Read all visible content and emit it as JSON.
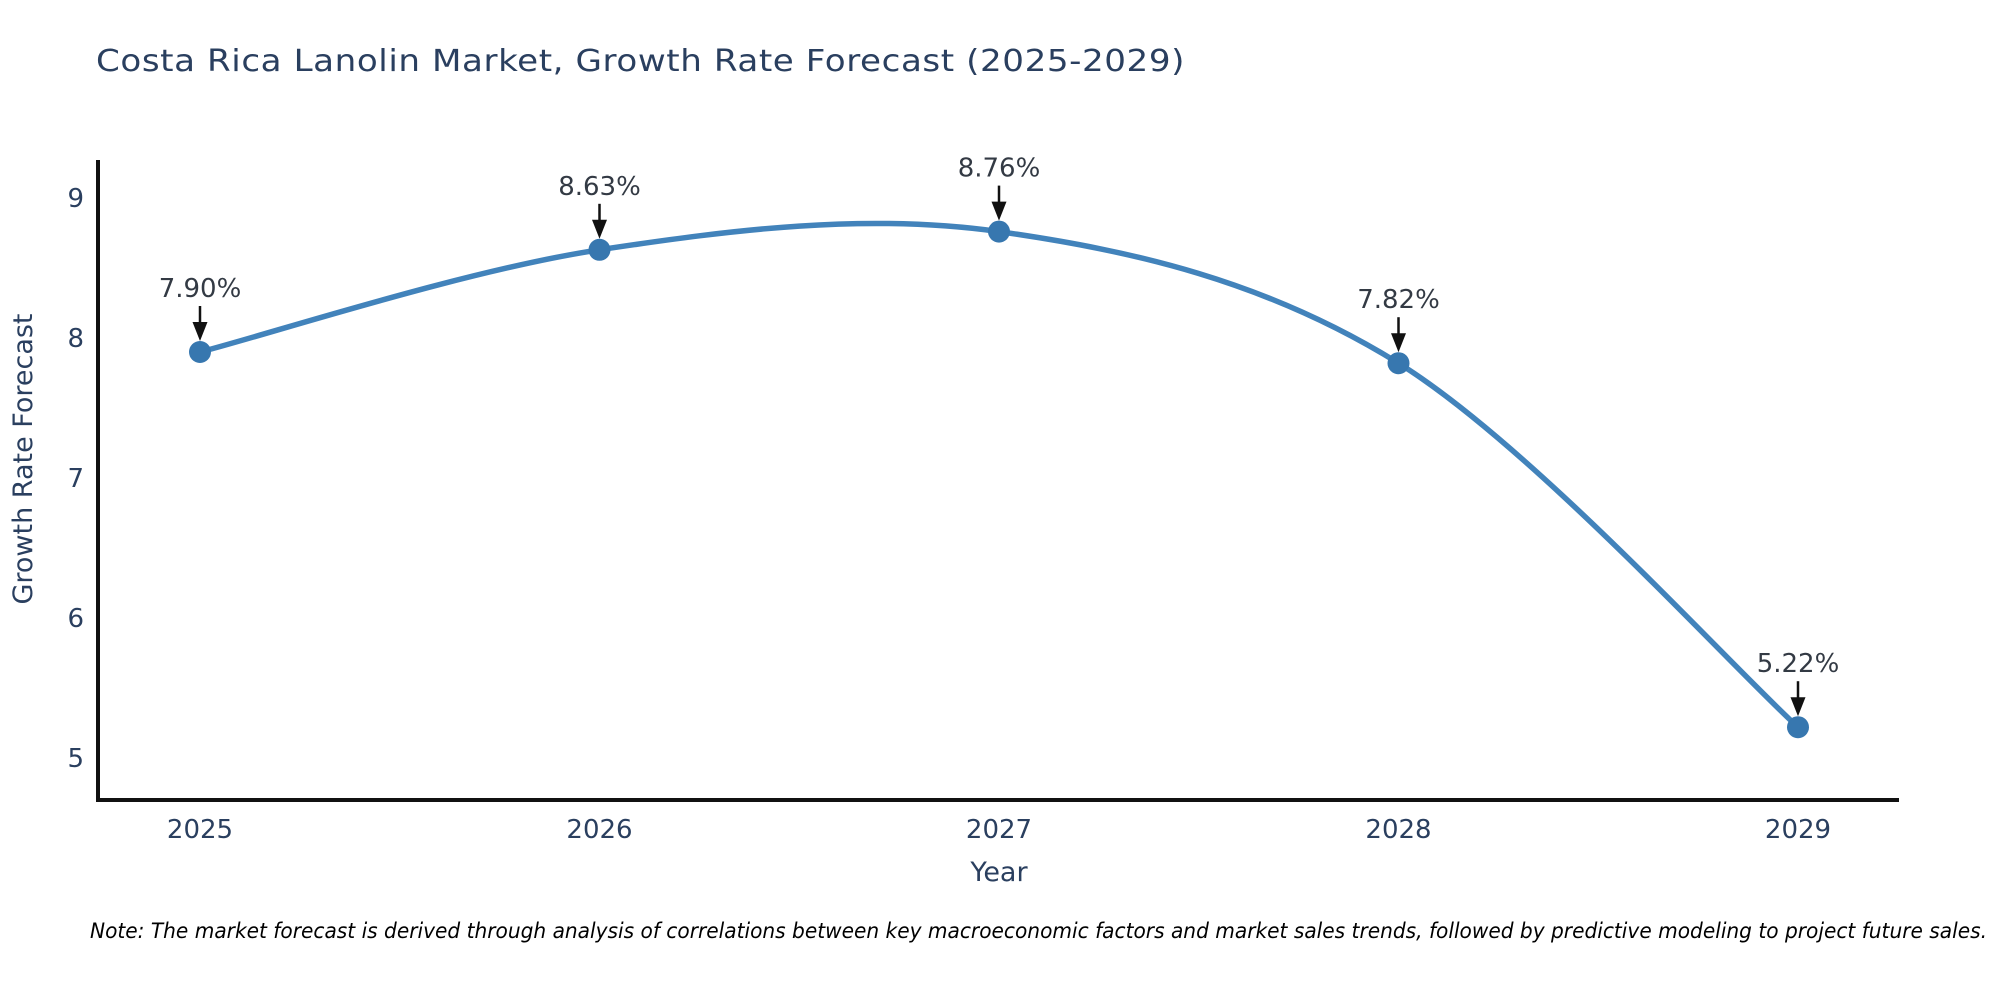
{
  "page": {
    "background": "#ffffff"
  },
  "colors": {
    "title": "#2a3f5f",
    "axis_title": "#2a3f5f",
    "tick_label": "#2a3f5f",
    "data_label": "#333a44",
    "axis_line": "#111111",
    "arrow": "#111111",
    "note": "#000000"
  },
  "note": {
    "text": "Note: The market forecast is derived through analysis of correlations between key macroeconomic factors and market sales trends, followed by predictive modeling to project future sales."
  },
  "chart_data": {
    "type": "line",
    "title": "Costa Rica Lanolin Market, Growth Rate Forecast (2025-2029)",
    "xlabel": "Year",
    "ylabel": "Growth Rate Forecast",
    "categories": [
      "2025",
      "2026",
      "2027",
      "2028",
      "2029"
    ],
    "x": [
      2025,
      2026,
      2027,
      2028,
      2029
    ],
    "values": [
      7.9,
      8.63,
      8.76,
      7.82,
      5.22
    ],
    "point_labels": [
      "7.90%",
      "8.63%",
      "8.76%",
      "7.82%",
      "5.22%"
    ],
    "yticks": [
      5,
      6,
      7,
      8,
      9
    ],
    "ylim": [
      4.7,
      9.27
    ],
    "line_shape": "spline",
    "line_color": "#4283bb",
    "marker_color": "#3777af",
    "grid": false,
    "legend": null,
    "annotations": "arrow-down-to-point"
  }
}
